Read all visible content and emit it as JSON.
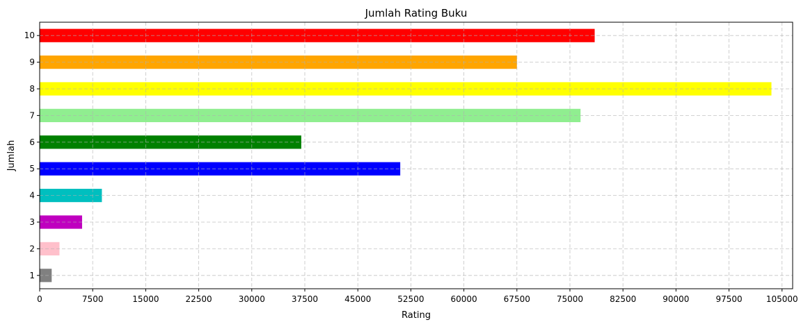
{
  "chart_data": {
    "type": "bar",
    "orientation": "horizontal",
    "title": "Jumlah Rating Buku",
    "xlabel": "Rating",
    "ylabel": "Jumlah",
    "categories": [
      "1",
      "2",
      "3",
      "4",
      "5",
      "6",
      "7",
      "8",
      "9",
      "10"
    ],
    "values": [
      1700,
      2800,
      6000,
      8800,
      51000,
      37000,
      76500,
      103500,
      67500,
      78500
    ],
    "colors": [
      "#808080",
      "#ffc0cb",
      "#bf00bf",
      "#00bfbf",
      "#0000ff",
      "#008000",
      "#90ee90",
      "#ffff00",
      "#ffa500",
      "#ff0000"
    ],
    "xlim": [
      0,
      106500
    ],
    "xticks": [
      "0",
      "7500",
      "15000",
      "22500",
      "30000",
      "37500",
      "45000",
      "52500",
      "60000",
      "67500",
      "75000",
      "82500",
      "90000",
      "97500",
      "105000"
    ],
    "grid": true
  }
}
